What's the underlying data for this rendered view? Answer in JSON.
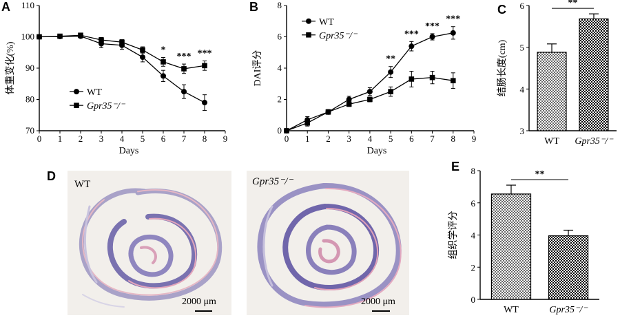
{
  "panels": {
    "A": {
      "letter": "A"
    },
    "B": {
      "letter": "B"
    },
    "C": {
      "letter": "C"
    },
    "D": {
      "letter": "D",
      "wt_label": "WT",
      "ko_label": "Gpr35⁻/⁻",
      "scalebar_left": "2000 μm",
      "scalebar_right": "2000 μm"
    },
    "E": {
      "letter": "E"
    }
  },
  "chart_data": [
    {
      "panel": "A",
      "type": "line",
      "ylabel": "体重变化(%)",
      "xlabel": "Days",
      "xlim": [
        0,
        9
      ],
      "ylim": [
        70,
        110
      ],
      "xticks": [
        0,
        1,
        2,
        3,
        4,
        5,
        6,
        7,
        8,
        9
      ],
      "yticks": [
        70,
        80,
        90,
        100,
        110
      ],
      "x": [
        0,
        1,
        2,
        3,
        4,
        5,
        6,
        7,
        8
      ],
      "series": [
        {
          "name": "WT",
          "marker": "circle",
          "values": [
            100,
            100.1,
            100.2,
            97.8,
            97.3,
            93.5,
            87.5,
            82.5,
            79.0
          ],
          "err": [
            0,
            0.5,
            0.6,
            1.3,
            1.3,
            1.5,
            1.8,
            2.2,
            2.5
          ]
        },
        {
          "name": "Gpr35⁻/⁻",
          "marker": "square",
          "values": [
            100,
            100.2,
            100.5,
            99.0,
            98.3,
            95.8,
            92.0,
            89.8,
            90.8
          ],
          "err": [
            0,
            0.4,
            0.5,
            0.8,
            0.8,
            1.0,
            1.4,
            1.5,
            1.5
          ]
        }
      ],
      "annotations": [
        {
          "x": 6,
          "text": "*"
        },
        {
          "x": 7,
          "text": "***"
        },
        {
          "x": 8,
          "text": "***"
        }
      ]
    },
    {
      "panel": "B",
      "type": "line",
      "ylabel": "DAI评分",
      "xlabel": "Days",
      "xlim": [
        0,
        9
      ],
      "ylim": [
        0,
        8
      ],
      "xticks": [
        0,
        1,
        2,
        3,
        4,
        5,
        6,
        7,
        8,
        9
      ],
      "yticks": [
        0,
        2,
        4,
        6,
        8
      ],
      "x": [
        0,
        1,
        2,
        3,
        4,
        5,
        6,
        7,
        8
      ],
      "series": [
        {
          "name": "WT",
          "marker": "circle",
          "values": [
            0,
            0.7,
            1.2,
            2.0,
            2.5,
            3.75,
            5.4,
            6.0,
            6.25
          ],
          "err": [
            0,
            0.2,
            0.15,
            0.2,
            0.25,
            0.35,
            0.3,
            0.2,
            0.4
          ]
        },
        {
          "name": "Gpr35⁻/⁻",
          "marker": "square",
          "values": [
            0,
            0.5,
            1.2,
            1.7,
            2.0,
            2.5,
            3.3,
            3.4,
            3.2
          ],
          "err": [
            0,
            0.2,
            0.15,
            0.15,
            0.15,
            0.3,
            0.5,
            0.4,
            0.5
          ]
        }
      ],
      "annotations": [
        {
          "x": 5,
          "text": "**"
        },
        {
          "x": 6,
          "text": "***"
        },
        {
          "x": 7,
          "text": "***"
        },
        {
          "x": 8,
          "text": "***"
        }
      ]
    },
    {
      "panel": "C",
      "type": "bar",
      "ylabel": "结肠长度(cm)",
      "categories": [
        "WT",
        "Gpr35⁻/⁻"
      ],
      "values": [
        4.88,
        5.68
      ],
      "err": [
        0.2,
        0.12
      ],
      "ylim": [
        3,
        6
      ],
      "yticks": [
        3,
        4,
        5,
        6
      ],
      "significance": "**"
    },
    {
      "panel": "E",
      "type": "bar",
      "ylabel": "组织学评分",
      "categories": [
        "WT",
        "Gpr35⁻/⁻"
      ],
      "values": [
        6.55,
        3.95
      ],
      "err": [
        0.55,
        0.35
      ],
      "ylim": [
        0,
        8
      ],
      "yticks": [
        0,
        2,
        4,
        6,
        8
      ],
      "significance": "**"
    }
  ]
}
